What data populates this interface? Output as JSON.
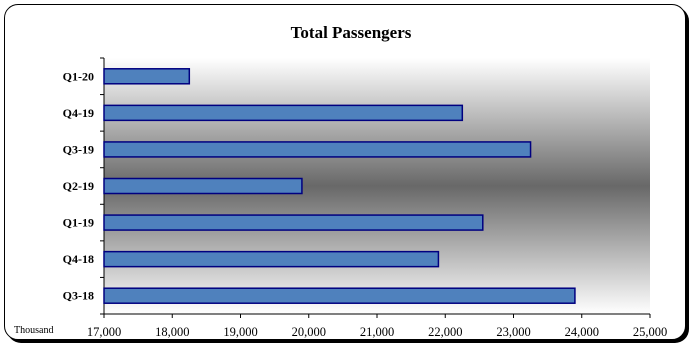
{
  "chart_data": {
    "type": "bar",
    "orientation": "horizontal",
    "title": "Total Passengers",
    "unit_label": "Thousand",
    "categories": [
      "Q1-20",
      "Q4-19",
      "Q3-19",
      "Q2-19",
      "Q1-19",
      "Q4-18",
      "Q3-18"
    ],
    "values": [
      18250,
      22250,
      23250,
      19900,
      22550,
      21900,
      23900
    ],
    "xlim": [
      17000,
      25000
    ],
    "xticks": [
      "17,000",
      "18,000",
      "19,000",
      "20,000",
      "21,000",
      "22,000",
      "23,000",
      "24,000",
      "25,000"
    ],
    "grid": false,
    "legend": "none",
    "colors": {
      "bar_fill": "#4f81bd",
      "bar_stroke": "#000080",
      "plot_gradient_edge": "#ffffff",
      "plot_gradient_mid": "#686868"
    }
  }
}
